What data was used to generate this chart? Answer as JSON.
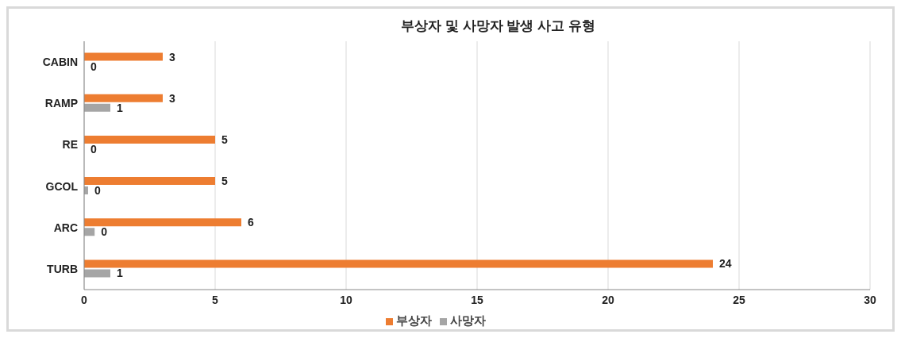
{
  "chart_data": {
    "type": "bar",
    "orientation": "horizontal",
    "title": "부상자 및 사망자 발생 사고 유형",
    "categories": [
      "CABIN",
      "RAMP",
      "RE",
      "GCOL",
      "ARC",
      "TURB"
    ],
    "series": [
      {
        "name": "부상자",
        "color": "#ed7d31",
        "values": [
          3,
          3,
          5,
          5,
          6,
          24
        ],
        "value_labels": [
          "3",
          "3",
          "5",
          "5",
          "6",
          "24"
        ]
      },
      {
        "name": "사망자",
        "color": "#a5a5a5",
        "values": [
          0,
          1,
          0,
          0.15,
          0.4,
          1
        ],
        "value_labels": [
          "0",
          "1",
          "0",
          "0",
          "0",
          "1"
        ]
      }
    ],
    "xlim": [
      0,
      30
    ],
    "xticks": [
      0,
      5,
      10,
      15,
      20,
      25,
      30
    ],
    "grid": "x",
    "legend": "bottom"
  }
}
